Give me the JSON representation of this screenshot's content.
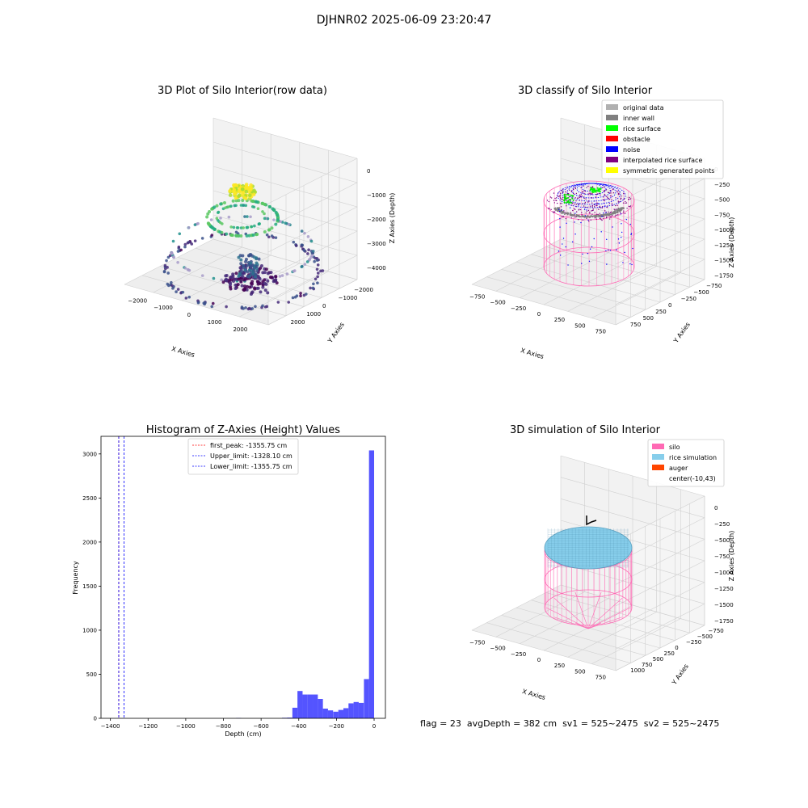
{
  "figure": {
    "suptitle": "DJHNR02 2025-06-09 23:20:47",
    "footer": {
      "flag": "flag = 23",
      "avg_depth": "avgDepth = 382 cm",
      "sv1": "sv1 = 525~2475",
      "sv2": "sv2 = 525~2475"
    }
  },
  "colors": {
    "viridis": [
      "#440154",
      "#472c7a",
      "#3b518b",
      "#2c718e",
      "#21908d",
      "#27ad81",
      "#5cc863",
      "#aadc32",
      "#fde725"
    ],
    "pane": "#f2f2f2",
    "grid": "#d0d0d0",
    "hist_bar": "#4b4bff"
  },
  "chart_data": [
    {
      "type": "scatter",
      "title": "3D Plot of Silo Interior(row data)",
      "xlabel": "X Axies",
      "ylabel": "Y Axies",
      "zlabel": "Z Axies (Depth)",
      "x_ticks": [
        "−2000",
        "−1000",
        "0",
        "1000",
        "2000"
      ],
      "y_ticks": [
        "−2000",
        "−1000",
        "0",
        "1000",
        "2000"
      ],
      "z_ticks": [
        "−4000",
        "−3000",
        "−2000",
        "−1000",
        "0"
      ],
      "xlim": [
        -2500,
        2500
      ],
      "ylim": [
        -2500,
        2500
      ],
      "zlim": [
        -4500,
        300
      ],
      "colormap": "viridis",
      "grid": true
    },
    {
      "type": "scatter",
      "title": "3D classify of Silo Interior",
      "xlabel": "X Axies",
      "ylabel": "Y Axies",
      "zlabel": "Z Axies (Depth)",
      "x_ticks": [
        "−750",
        "−500",
        "−250",
        "0",
        "250",
        "500",
        "750"
      ],
      "y_ticks": [
        "−750",
        "−500",
        "−250",
        "0",
        "250",
        "500",
        "750"
      ],
      "z_ticks": [
        "−1750",
        "−1500",
        "−1250",
        "−1000",
        "−750",
        "−500",
        "−250",
        "0"
      ],
      "legend_position": "top-right",
      "legend": [
        {
          "label": "original data",
          "color": "#b0b0b0"
        },
        {
          "label": "inner wall",
          "color": "#808080"
        },
        {
          "label": "rice surface",
          "color": "#00ff00"
        },
        {
          "label": "obstacle",
          "color": "#ff0000"
        },
        {
          "label": "noise",
          "color": "#0000ff"
        },
        {
          "label": "interpolated rice surface",
          "color": "#800080"
        },
        {
          "label": "symmetric generated points",
          "color": "#ffff00"
        }
      ],
      "grid": true
    },
    {
      "type": "bar",
      "title": "Histogram of Z-Axies (Height) Values",
      "xlabel": "Depth (cm)",
      "ylabel": "Frequency",
      "xlim": [
        -1450,
        60
      ],
      "ylim": [
        0,
        3200
      ],
      "x_ticks": [
        -1400,
        -1200,
        -1000,
        -800,
        -600,
        -400,
        -200,
        0
      ],
      "y_ticks": [
        0,
        500,
        1000,
        1500,
        2000,
        2500,
        3000
      ],
      "bin_width": 27.15,
      "bins": [
        {
          "start": -733.0,
          "count": 4
        },
        {
          "start": -489.0,
          "count": 6
        },
        {
          "start": -462.0,
          "count": 8
        },
        {
          "start": -434.0,
          "count": 120
        },
        {
          "start": -407.0,
          "count": 310
        },
        {
          "start": -380.0,
          "count": 270
        },
        {
          "start": -353.0,
          "count": 270
        },
        {
          "start": -326.0,
          "count": 270
        },
        {
          "start": -299.0,
          "count": 220
        },
        {
          "start": -272.0,
          "count": 110
        },
        {
          "start": -245.0,
          "count": 90
        },
        {
          "start": -217.0,
          "count": 75
        },
        {
          "start": -190.0,
          "count": 95
        },
        {
          "start": -163.0,
          "count": 115
        },
        {
          "start": -136.0,
          "count": 170
        },
        {
          "start": -109.0,
          "count": 185
        },
        {
          "start": -82.0,
          "count": 175
        },
        {
          "start": -54.0,
          "count": 445
        },
        {
          "start": -27.15,
          "count": 3040
        }
      ],
      "lines": [
        {
          "label": "first_peak: -1355.75 cm",
          "x": -1355.75,
          "color": "#ff0000"
        },
        {
          "label": "Upper_limit: -1328.10 cm",
          "x": -1328.1,
          "color": "#0000ff"
        },
        {
          "label": "Lower_limit: -1355.75 cm",
          "x": -1355.75,
          "color": "#0000ff"
        }
      ],
      "legend_position": "top-center"
    },
    {
      "type": "scatter",
      "title": "3D simulation of Silo Interior",
      "xlabel": "X Axies",
      "ylabel": "Y Axies",
      "zlabel": "Z Axies (Depth)",
      "x_ticks": [
        "−750",
        "−500",
        "−250",
        "0",
        "250",
        "500",
        "750"
      ],
      "y_ticks": [
        "−750",
        "−500",
        "−250",
        "0",
        "250",
        "500",
        "750",
        "1000"
      ],
      "z_ticks": [
        "−1750",
        "−1500",
        "−1250",
        "−1000",
        "−750",
        "−500",
        "−250",
        "0"
      ],
      "legend_position": "top-right",
      "legend": [
        {
          "label": "silo",
          "color": "#ff69b4"
        },
        {
          "label": "rice simulation",
          "color": "#87ceeb"
        },
        {
          "label": "auger",
          "color": "#ff4500"
        },
        {
          "label": "center(-10,43)",
          "color": "#ffffff"
        }
      ],
      "grid": true
    }
  ]
}
